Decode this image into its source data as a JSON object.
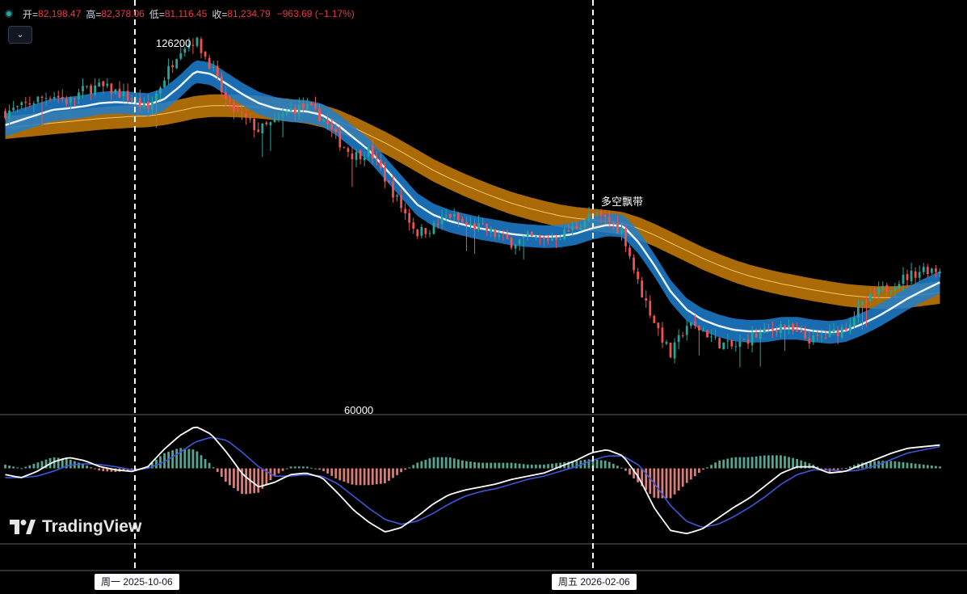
{
  "legend": {
    "open_label": "开=",
    "open_value": "82,198.47",
    "high_label": "高=",
    "high_value": "82,378.06",
    "low_label": "低=",
    "low_value": "81,116.45",
    "close_label": "收=",
    "close_value": "81,234.79",
    "change": "−963.69 (−1.17%)"
  },
  "annotations": {
    "peak_label": "126200",
    "ribbon_label": "多空飘带",
    "level_label": "60000"
  },
  "branding": {
    "logo_text": "TradingView"
  },
  "crosshair_dates": {
    "left": "周一 2025-10-06",
    "right": "周五 2026-02-06"
  },
  "colors": {
    "background": "#000000",
    "up": "#26a69a",
    "down": "#ef5350",
    "blue_ribbon": "#1e7fd0",
    "orange_ribbon": "#c77d08",
    "macd_line": "#ffffff",
    "signal_line": "#3f56d8"
  },
  "chart_data": [
    {
      "type": "candlestick",
      "title": "",
      "x_range": [
        "2025-07",
        "2026-04"
      ],
      "ylim": [
        55000,
        130000
      ],
      "close_path": [
        112000,
        113000,
        114500,
        115500,
        114000,
        116500,
        117000,
        116000,
        114500,
        112500,
        118500,
        124500,
        126200,
        121000,
        113500,
        111000,
        108500,
        110000,
        112500,
        113000,
        111000,
        106500,
        103500,
        104500,
        99000,
        93500,
        88500,
        89500,
        92000,
        90000,
        89500,
        88000,
        86500,
        87500,
        87000,
        88000,
        89500,
        92000,
        91000,
        88500,
        78000,
        71000,
        64500,
        70500,
        69500,
        67000,
        66000,
        68000,
        69000,
        70500,
        68500,
        67500,
        68500,
        70000,
        74000,
        76500,
        78500,
        80000,
        81500,
        81234.79
      ],
      "blue_ribbon_mid": [
        109500,
        110500,
        111500,
        112500,
        112800,
        113200,
        113800,
        114000,
        113800,
        113500,
        114500,
        117000,
        120000,
        119500,
        117500,
        115500,
        113800,
        112800,
        112300,
        112200,
        111500,
        109500,
        107000,
        104500,
        101000,
        97500,
        94000,
        92000,
        90800,
        90000,
        89300,
        88800,
        88200,
        87900,
        87700,
        87800,
        88300,
        89300,
        90000,
        89800,
        86500,
        82000,
        77000,
        73500,
        71500,
        70300,
        69500,
        69200,
        69300,
        69800,
        69800,
        69300,
        69000,
        69300,
        70500,
        72000,
        73800,
        75700,
        77300,
        78800
      ],
      "orange_ribbon_mid": [
        109000,
        109300,
        109600,
        109900,
        110200,
        110500,
        110800,
        111000,
        111200,
        111300,
        111700,
        112300,
        113000,
        113300,
        113300,
        113200,
        113000,
        112700,
        112400,
        112000,
        111300,
        110300,
        109000,
        107500,
        106000,
        104300,
        102500,
        100700,
        99200,
        97800,
        96500,
        95300,
        94200,
        93300,
        92500,
        91800,
        91300,
        91000,
        90700,
        90300,
        89300,
        88000,
        86500,
        85000,
        83500,
        82200,
        81000,
        80000,
        79200,
        78500,
        77900,
        77300,
        76800,
        76300,
        76000,
        75800,
        75800,
        76000,
        76400,
        76800
      ]
    },
    {
      "type": "macd",
      "title": "",
      "zero_line": 0,
      "macd": [
        -0.2,
        -0.3,
        -0.1,
        0.2,
        0.35,
        0.25,
        0.05,
        -0.05,
        -0.1,
        0.05,
        0.6,
        1.05,
        1.35,
        1.1,
        0.5,
        -0.2,
        -0.6,
        -0.45,
        -0.2,
        -0.15,
        -0.3,
        -0.8,
        -1.35,
        -1.75,
        -2.05,
        -1.9,
        -1.55,
        -1.15,
        -0.85,
        -0.7,
        -0.6,
        -0.5,
        -0.35,
        -0.25,
        -0.15,
        0.05,
        0.25,
        0.5,
        0.6,
        0.4,
        -0.3,
        -1.3,
        -2.0,
        -2.1,
        -1.95,
        -1.6,
        -1.25,
        -0.95,
        -0.55,
        -0.15,
        0.05,
        0.05,
        -0.15,
        -0.1,
        0.1,
        0.3,
        0.5,
        0.65,
        0.7,
        0.75
      ],
      "signal": [
        -0.3,
        -0.3,
        -0.25,
        -0.1,
        0.1,
        0.15,
        0.12,
        0.05,
        -0.05,
        0.0,
        0.2,
        0.5,
        0.85,
        1.0,
        0.9,
        0.5,
        0.05,
        -0.25,
        -0.25,
        -0.2,
        -0.25,
        -0.5,
        -0.9,
        -1.3,
        -1.65,
        -1.8,
        -1.7,
        -1.45,
        -1.15,
        -0.9,
        -0.75,
        -0.65,
        -0.5,
        -0.35,
        -0.25,
        -0.1,
        0.05,
        0.25,
        0.4,
        0.4,
        0.1,
        -0.5,
        -1.2,
        -1.7,
        -1.9,
        -1.8,
        -1.55,
        -1.25,
        -0.9,
        -0.5,
        -0.2,
        -0.05,
        -0.05,
        -0.1,
        -0.05,
        0.1,
        0.3,
        0.5,
        0.6,
        0.7
      ]
    }
  ]
}
